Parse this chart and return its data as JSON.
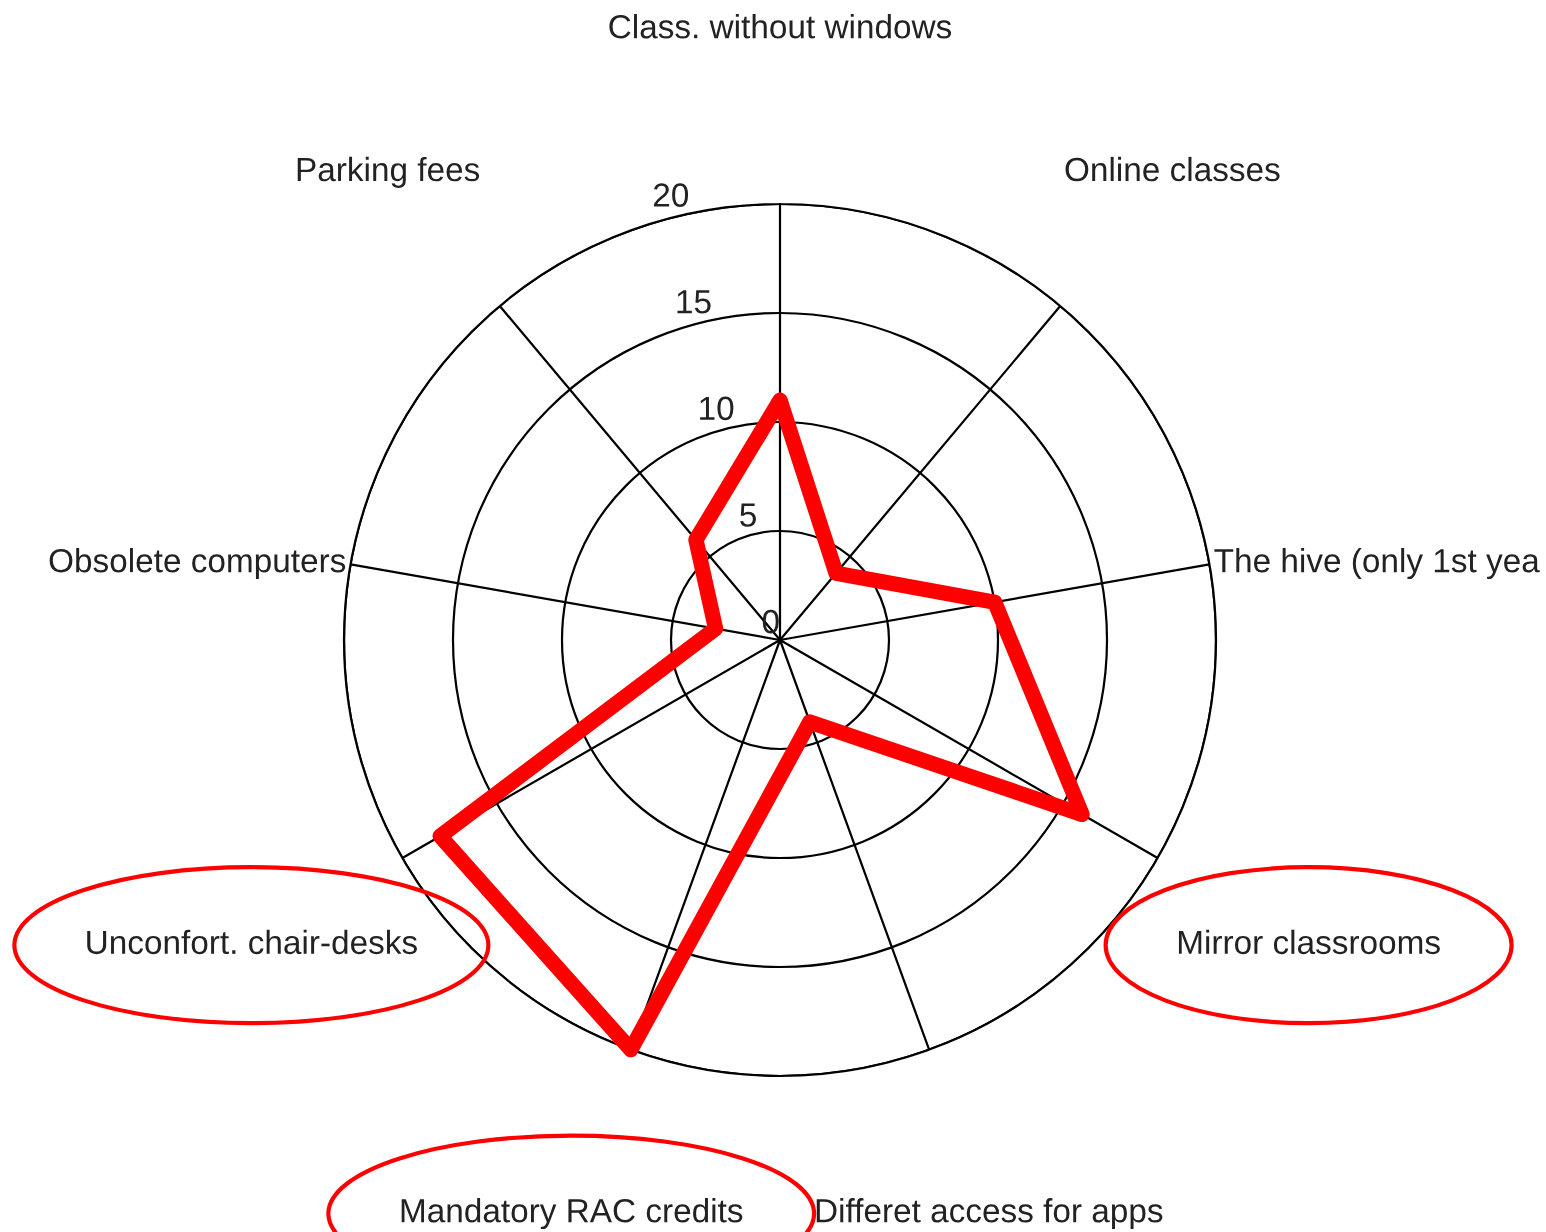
{
  "chart_data": {
    "type": "radar",
    "categories": [
      "Class. without windows",
      "Online classes",
      "The hive (only 1st yea",
      "Mirror classrooms",
      "Differet access for apps",
      "Mandatory RAC credits",
      "Unconfort. chair-desks",
      "Obsolete computers",
      "Parking fees"
    ],
    "series": [
      {
        "color": "#ff0000",
        "values": [
          11,
          4,
          10,
          16,
          4,
          20,
          18,
          3,
          6
        ]
      }
    ],
    "ylim": [
      0,
      20
    ],
    "yticks": [
      0,
      5,
      10,
      15,
      20
    ],
    "grid": true
  }
}
